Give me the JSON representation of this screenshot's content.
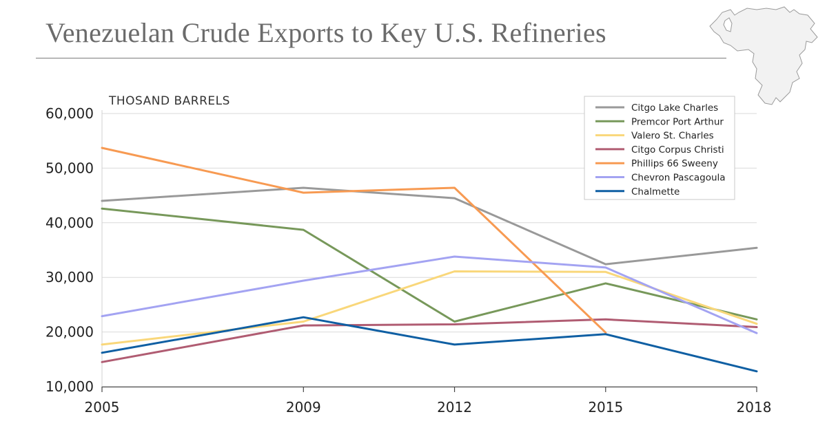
{
  "title": "Venezuelan Crude Exports to Key U.S. Refineries",
  "colors": {
    "title": "#6b6b6b",
    "grid": "#d9d9d9",
    "map_fill": "#f2f2f2",
    "map_stroke": "#9a9a9a"
  },
  "icons": {
    "map": "venezuela-map-icon"
  },
  "chart_data": {
    "type": "line",
    "title": "Venezuelan Crude Exports to Key U.S. Refineries",
    "ylabel": "THOSAND BARRELS",
    "xlabel": "",
    "x": [
      2005,
      2009,
      2012,
      2015,
      2018
    ],
    "x_tick_labels": [
      "2005",
      "2009",
      "2012",
      "2015",
      "2018"
    ],
    "ylim": [
      10000,
      60000
    ],
    "y_ticks": [
      10000,
      20000,
      30000,
      40000,
      50000,
      60000
    ],
    "y_tick_labels": [
      "10,000",
      "20,000",
      "30,000",
      "40,000",
      "50,000",
      "60,000"
    ],
    "grid": "horizontal",
    "legend_position": "top-right",
    "series": [
      {
        "name": "Citgo Lake Charles",
        "color": "#999999",
        "points": [
          [
            2005,
            44000
          ],
          [
            2009,
            46400
          ],
          [
            2012,
            44500
          ],
          [
            2015,
            32400
          ],
          [
            2018,
            35400
          ]
        ]
      },
      {
        "name": "Premcor Port Arthur",
        "color": "#77985a",
        "points": [
          [
            2005,
            42600
          ],
          [
            2009,
            38700
          ],
          [
            2012,
            21900
          ],
          [
            2015,
            28900
          ],
          [
            2018,
            22300
          ]
        ]
      },
      {
        "name": "Valero St. Charles",
        "color": "#f9d77a",
        "points": [
          [
            2005,
            17700
          ],
          [
            2009,
            21900
          ],
          [
            2012,
            31100
          ],
          [
            2015,
            31000
          ],
          [
            2018,
            21500
          ]
        ]
      },
      {
        "name": "Citgo Corpus Christi",
        "color": "#b05c72",
        "points": [
          [
            2005,
            14500
          ],
          [
            2009,
            21200
          ],
          [
            2012,
            21400
          ],
          [
            2015,
            22300
          ],
          [
            2018,
            20900
          ]
        ]
      },
      {
        "name": "Phillips 66 Sweeny",
        "color": "#f79a52",
        "points": [
          [
            2005,
            53700
          ],
          [
            2009,
            45500
          ],
          [
            2012,
            46400
          ],
          [
            2015,
            19900
          ]
        ]
      },
      {
        "name": "Chevron Pascagoula",
        "color": "#a3a3f2",
        "points": [
          [
            2005,
            22900
          ],
          [
            2009,
            29400
          ],
          [
            2012,
            33800
          ],
          [
            2015,
            31800
          ],
          [
            2018,
            19800
          ]
        ]
      },
      {
        "name": "Chalmette",
        "color": "#0f5fa3",
        "points": [
          [
            2005,
            16200
          ],
          [
            2009,
            22700
          ],
          [
            2012,
            17700
          ],
          [
            2015,
            19600
          ],
          [
            2018,
            12800
          ]
        ]
      }
    ]
  }
}
